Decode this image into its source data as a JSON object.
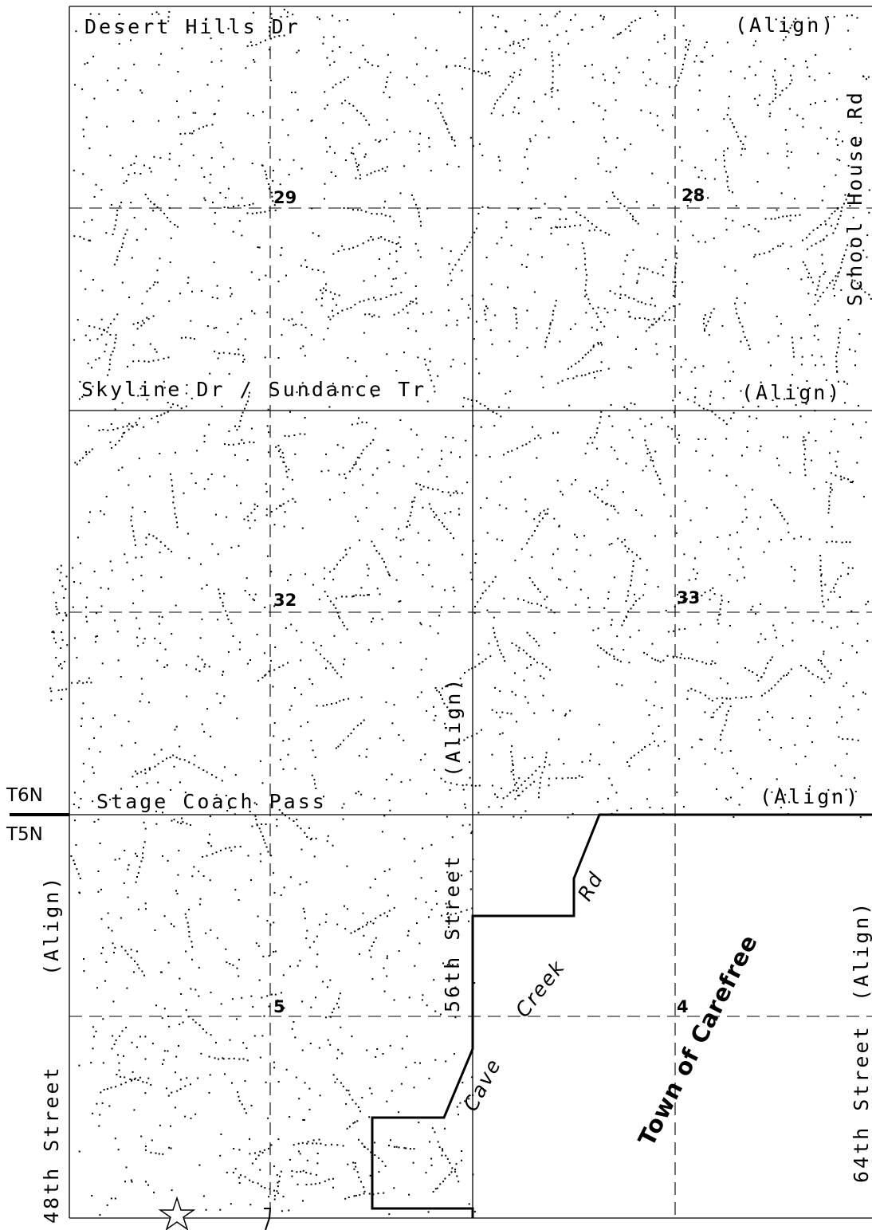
{
  "map": {
    "roads": {
      "desert_hills": "Desert Hills Dr",
      "skyline": "Skyline Dr / Sundance Tr",
      "stage_coach": "Stage Coach Pass",
      "school_house": "School House Rd",
      "st_56": "56th Street",
      "st_48": "48th Street",
      "st_64": "64th Street",
      "cave": "Cave",
      "creek": "Creek",
      "rd": "Rd"
    },
    "align_labels": {
      "top_right": "(Align)",
      "skyline_right": "(Align)",
      "stage_right": "(Align)",
      "st_56": "(Align)",
      "st_48": "(Align)",
      "st_64": "(Align)"
    },
    "sections": {
      "s29": "29",
      "s28": "28",
      "s32": "32",
      "s33": "33",
      "s5": "5",
      "s4": "4"
    },
    "township": {
      "north": "T6N",
      "south": "T5N"
    },
    "town": "Town of Carefree",
    "marker_icon": "star-icon"
  }
}
